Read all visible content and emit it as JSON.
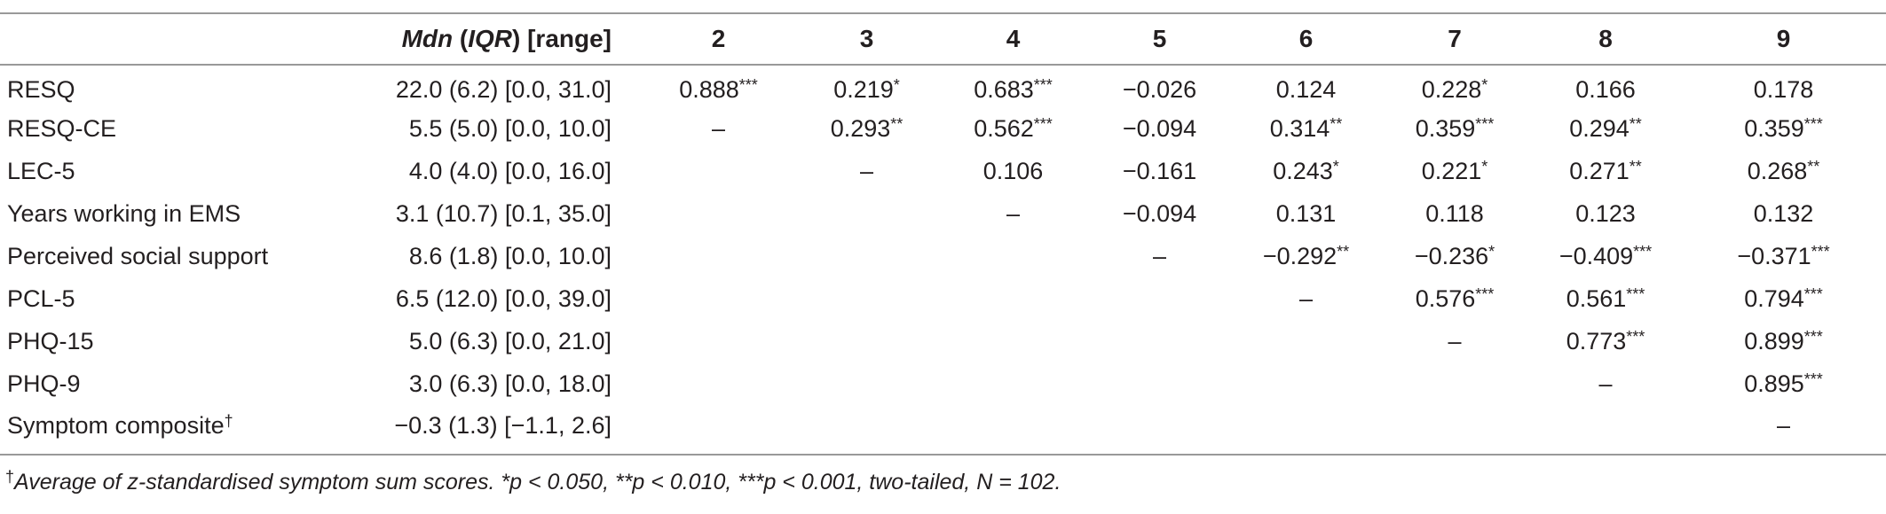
{
  "header": {
    "blank": "",
    "mdn": "Mdn",
    "iqr": "IQR",
    "range": "[range]",
    "cols": [
      "2",
      "3",
      "4",
      "5",
      "6",
      "7",
      "8",
      "9"
    ]
  },
  "rows": [
    {
      "label": "RESQ",
      "desc": "22.0 (6.2) [0.0, 31.0]",
      "cells": [
        {
          "v": "0.888",
          "s": "***"
        },
        {
          "v": "0.219",
          "s": "*"
        },
        {
          "v": "0.683",
          "s": "***"
        },
        {
          "v": "−0.026",
          "s": ""
        },
        {
          "v": "0.124",
          "s": ""
        },
        {
          "v": "0.228",
          "s": "*"
        },
        {
          "v": "0.166",
          "s": ""
        },
        {
          "v": "0.178",
          "s": ""
        }
      ]
    },
    {
      "label": "RESQ-CE",
      "desc": "5.5 (5.0) [0.0, 10.0]",
      "cells": [
        {
          "v": "–",
          "s": ""
        },
        {
          "v": "0.293",
          "s": "**"
        },
        {
          "v": "0.562",
          "s": "***"
        },
        {
          "v": "−0.094",
          "s": ""
        },
        {
          "v": "0.314",
          "s": "**"
        },
        {
          "v": "0.359",
          "s": "***"
        },
        {
          "v": "0.294",
          "s": "**"
        },
        {
          "v": "0.359",
          "s": "***"
        }
      ]
    },
    {
      "label": "LEC-5",
      "desc": "4.0 (4.0) [0.0, 16.0]",
      "cells": [
        {
          "v": "",
          "s": ""
        },
        {
          "v": "–",
          "s": ""
        },
        {
          "v": "0.106",
          "s": ""
        },
        {
          "v": "−0.161",
          "s": ""
        },
        {
          "v": "0.243",
          "s": "*"
        },
        {
          "v": "0.221",
          "s": "*"
        },
        {
          "v": "0.271",
          "s": "**"
        },
        {
          "v": "0.268",
          "s": "**"
        }
      ]
    },
    {
      "label": "Years working in EMS",
      "desc": "3.1 (10.7) [0.1, 35.0]",
      "cells": [
        {
          "v": "",
          "s": ""
        },
        {
          "v": "",
          "s": ""
        },
        {
          "v": "–",
          "s": ""
        },
        {
          "v": "−0.094",
          "s": ""
        },
        {
          "v": "0.131",
          "s": ""
        },
        {
          "v": "0.118",
          "s": ""
        },
        {
          "v": "0.123",
          "s": ""
        },
        {
          "v": "0.132",
          "s": ""
        }
      ]
    },
    {
      "label": "Perceived social support",
      "desc": "8.6 (1.8) [0.0, 10.0]",
      "cells": [
        {
          "v": "",
          "s": ""
        },
        {
          "v": "",
          "s": ""
        },
        {
          "v": "",
          "s": ""
        },
        {
          "v": "–",
          "s": ""
        },
        {
          "v": "−0.292",
          "s": "**"
        },
        {
          "v": "−0.236",
          "s": "*"
        },
        {
          "v": "−0.409",
          "s": "***"
        },
        {
          "v": "−0.371",
          "s": "***"
        }
      ]
    },
    {
      "label": "PCL-5",
      "desc": "6.5 (12.0) [0.0, 39.0]",
      "cells": [
        {
          "v": "",
          "s": ""
        },
        {
          "v": "",
          "s": ""
        },
        {
          "v": "",
          "s": ""
        },
        {
          "v": "",
          "s": ""
        },
        {
          "v": "–",
          "s": ""
        },
        {
          "v": "0.576",
          "s": "***"
        },
        {
          "v": "0.561",
          "s": "***"
        },
        {
          "v": "0.794",
          "s": "***"
        }
      ]
    },
    {
      "label": "PHQ-15",
      "desc": "5.0 (6.3) [0.0, 21.0]",
      "cells": [
        {
          "v": "",
          "s": ""
        },
        {
          "v": "",
          "s": ""
        },
        {
          "v": "",
          "s": ""
        },
        {
          "v": "",
          "s": ""
        },
        {
          "v": "",
          "s": ""
        },
        {
          "v": "–",
          "s": ""
        },
        {
          "v": "0.773",
          "s": "***"
        },
        {
          "v": "0.899",
          "s": "***"
        }
      ]
    },
    {
      "label": "PHQ-9",
      "desc": "3.0 (6.3) [0.0, 18.0]",
      "cells": [
        {
          "v": "",
          "s": ""
        },
        {
          "v": "",
          "s": ""
        },
        {
          "v": "",
          "s": ""
        },
        {
          "v": "",
          "s": ""
        },
        {
          "v": "",
          "s": ""
        },
        {
          "v": "",
          "s": ""
        },
        {
          "v": "–",
          "s": ""
        },
        {
          "v": "0.895",
          "s": "***"
        }
      ]
    },
    {
      "label": "Symptom composite",
      "label_sup": "†",
      "desc": "−0.3 (1.3) [−1.1, 2.6]",
      "cells": [
        {
          "v": "",
          "s": ""
        },
        {
          "v": "",
          "s": ""
        },
        {
          "v": "",
          "s": ""
        },
        {
          "v": "",
          "s": ""
        },
        {
          "v": "",
          "s": ""
        },
        {
          "v": "",
          "s": ""
        },
        {
          "v": "",
          "s": ""
        },
        {
          "v": "–",
          "s": ""
        }
      ]
    }
  ],
  "footnote": {
    "mark": "†",
    "text": "Average of z-standardised symptom sum scores. *p < 0.050, **p < 0.010, ***p < 0.001, two-tailed, N = 102."
  }
}
